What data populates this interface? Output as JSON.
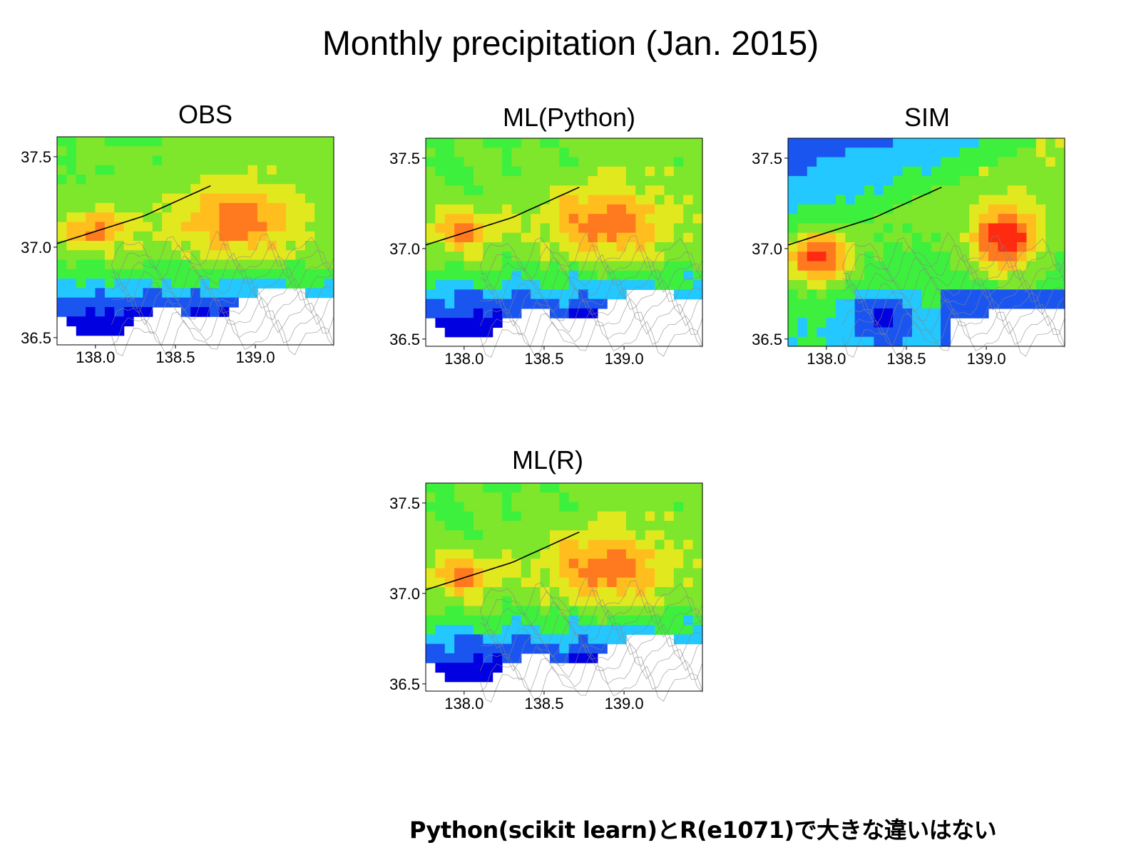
{
  "title": "Monthly precipitation (Jan. 2015)",
  "footer_note": "Python(scikit learn)とR(e1071)で大きな違いはない",
  "colors": {
    "scale": [
      "#0000e0",
      "#1a55f0",
      "#22c8ff",
      "#3df03d",
      "#7ee62b",
      "#e2e81e",
      "#ffbe1e",
      "#ff7a1e",
      "#ff2a10"
    ],
    "coastline": "#000000",
    "contour": "#888888"
  },
  "chart_data": [
    {
      "type": "heatmap",
      "title": "OBS",
      "x_ticks": [
        "138.0",
        "138.5",
        "139.0"
      ],
      "y_ticks": [
        "37.5",
        "37.0",
        "36.5"
      ],
      "x_tick_values": [
        138.0,
        138.5,
        139.0
      ],
      "y_tick_values": [
        37.5,
        37.0,
        36.5
      ],
      "xlim": [
        137.76,
        139.49
      ],
      "ylim": [
        36.46,
        37.61
      ],
      "grid": false,
      "colorbar": false,
      "field": "obs"
    },
    {
      "type": "heatmap",
      "title": "ML(Python)",
      "x_ticks": [
        "138.0",
        "138.5",
        "139.0"
      ],
      "y_ticks": [
        "37.5",
        "37.0",
        "36.5"
      ],
      "x_tick_values": [
        138.0,
        138.5,
        139.0
      ],
      "y_tick_values": [
        37.5,
        37.0,
        36.5
      ],
      "xlim": [
        137.76,
        139.49
      ],
      "ylim": [
        36.46,
        37.61
      ],
      "grid": false,
      "colorbar": false,
      "field": "mlpy"
    },
    {
      "type": "heatmap",
      "title": "SIM",
      "x_ticks": [
        "138.0",
        "138.5",
        "139.0"
      ],
      "y_ticks": [
        "37.5",
        "37.0",
        "36.5"
      ],
      "x_tick_values": [
        138.0,
        138.5,
        139.0
      ],
      "y_tick_values": [
        37.5,
        37.0,
        36.5
      ],
      "xlim": [
        137.76,
        139.49
      ],
      "ylim": [
        36.46,
        37.61
      ],
      "grid": false,
      "colorbar": false,
      "field": "sim"
    },
    {
      "type": "heatmap",
      "title": "ML(R)",
      "x_ticks": [
        "138.0",
        "138.5",
        "139.0"
      ],
      "y_ticks": [
        "37.5",
        "37.0",
        "36.5"
      ],
      "x_tick_values": [
        138.0,
        138.5,
        139.0
      ],
      "y_tick_values": [
        37.5,
        37.0,
        36.5
      ],
      "xlim": [
        137.76,
        139.49
      ],
      "ylim": [
        36.46,
        37.61
      ],
      "grid": false,
      "colorbar": false,
      "field": "mlr"
    }
  ]
}
